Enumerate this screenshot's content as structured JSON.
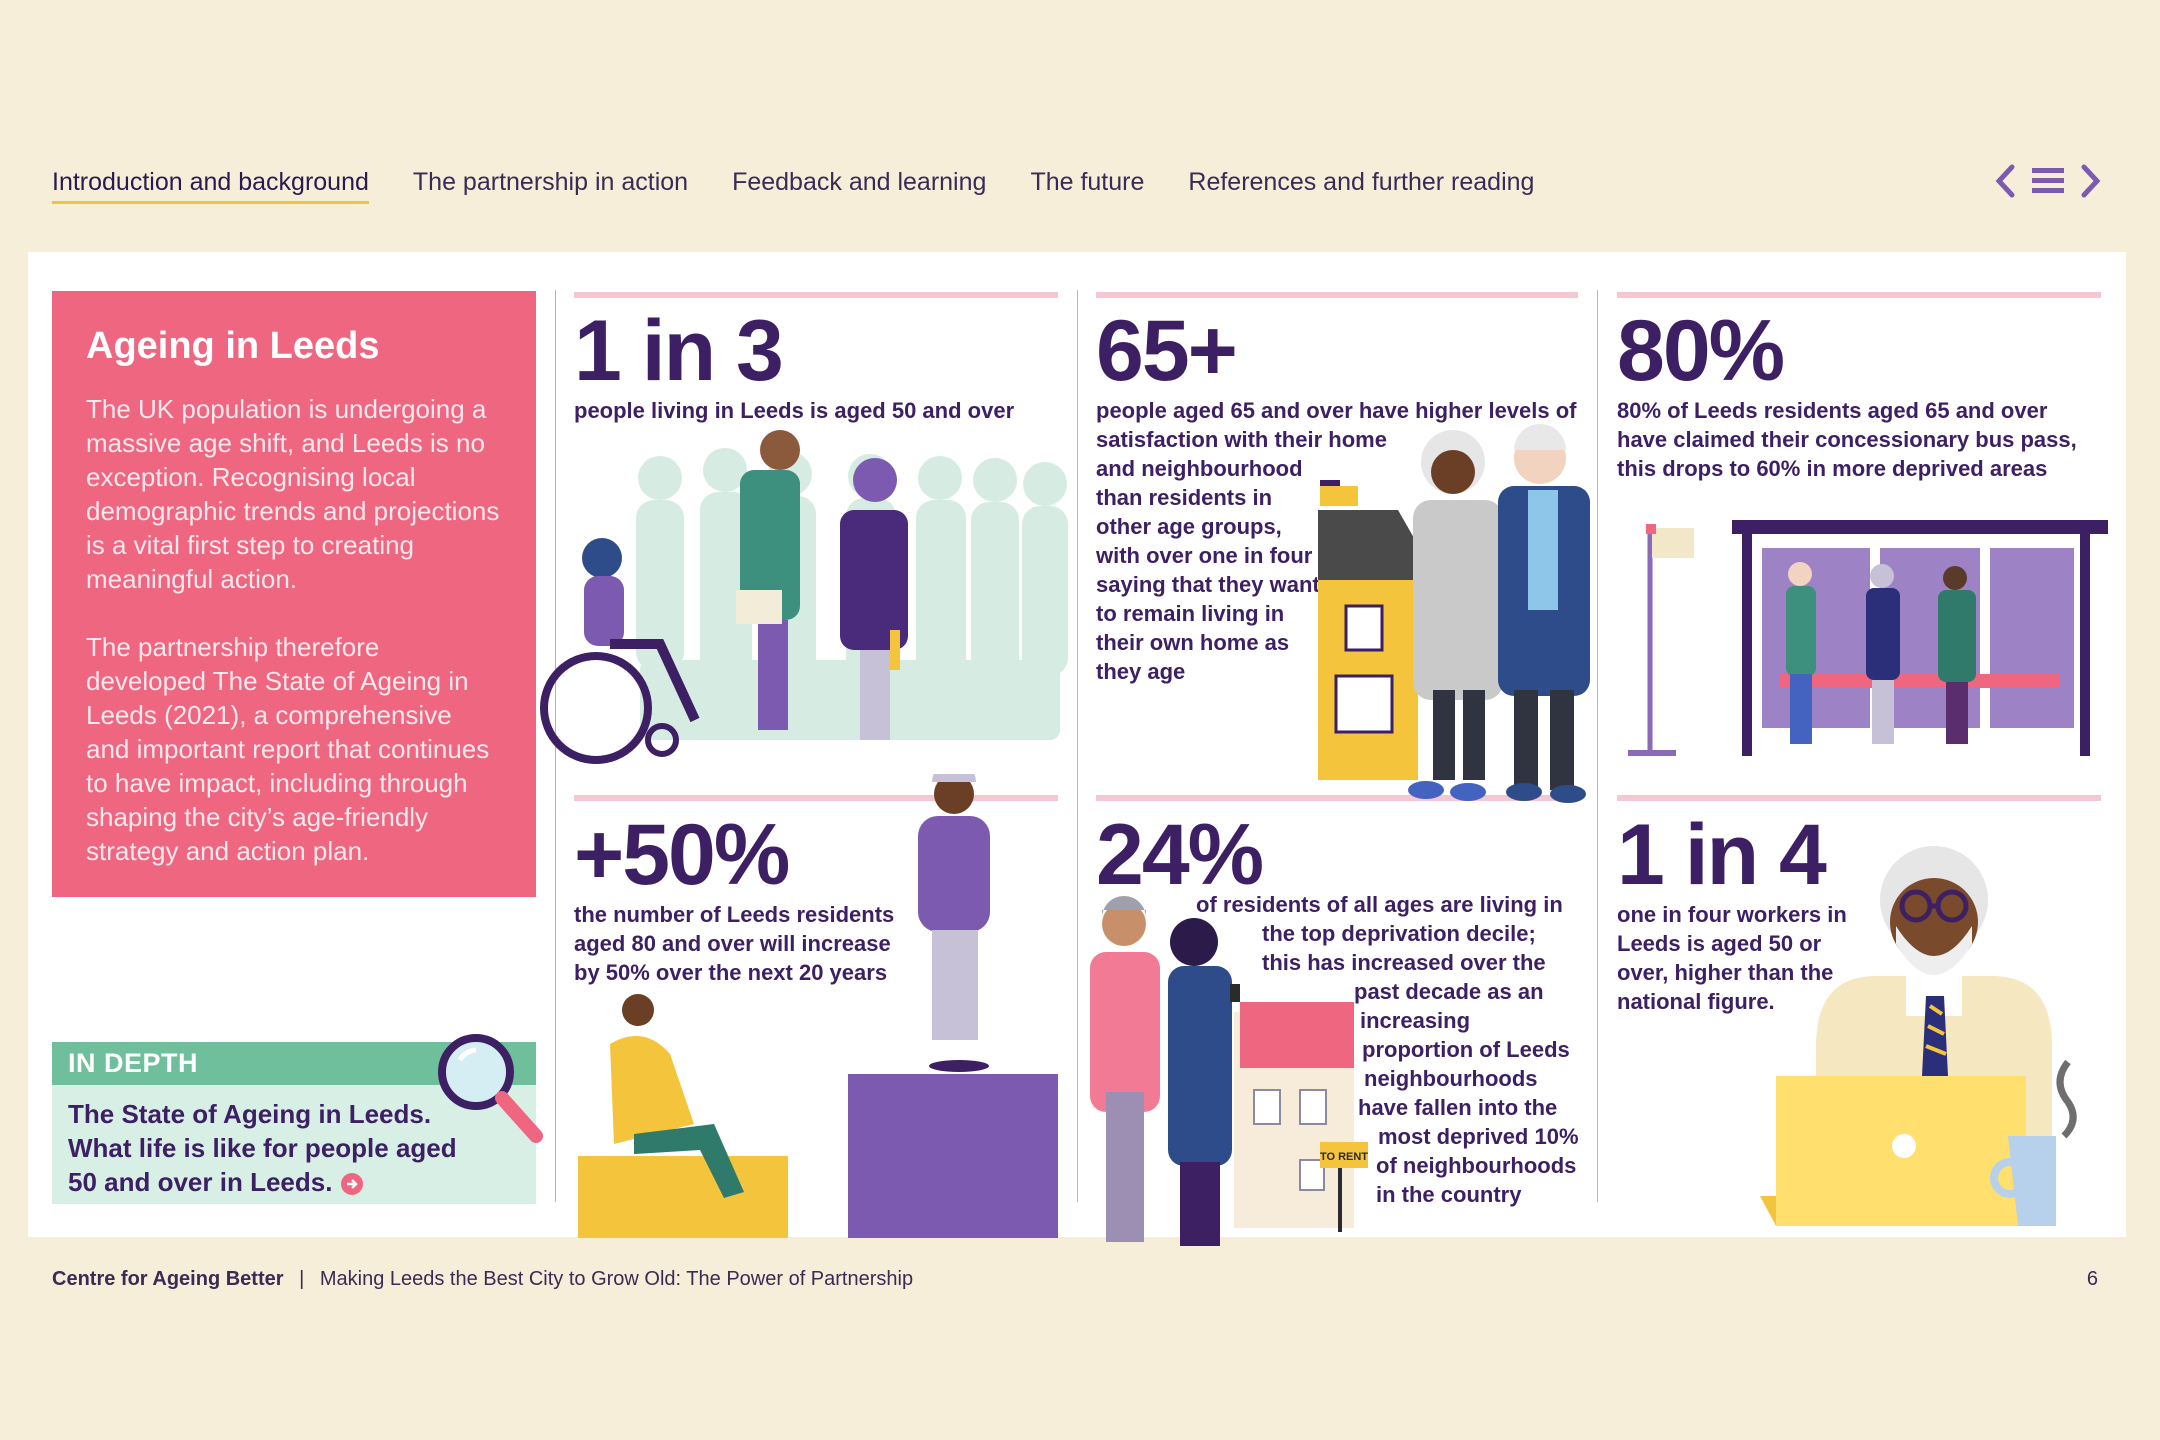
{
  "nav": {
    "items": [
      "Introduction and background",
      "The partnership in action",
      "Feedback and learning",
      "The future",
      "References and further reading"
    ]
  },
  "intro": {
    "title": "Ageing in Leeds",
    "para1": "The UK population is undergoing a massive age shift, and Leeds is no exception. Recognising local demographic trends and projections is a vital first step to creating meaningful action.",
    "para2": "The partnership therefore developed The State of Ageing in Leeds (2021), a comprehensive and important report that continues to have impact, including through shaping the city’s age-friendly strategy and action plan."
  },
  "in_depth": {
    "heading": "IN DEPTH",
    "text": "The State of Ageing in Leeds. What life is like for people aged 50 and over in Leeds."
  },
  "stats": {
    "s1": {
      "figure": "1 in 3",
      "text": "people living in Leeds is aged 50 and over"
    },
    "s2": {
      "figure": "65+",
      "line1": "people aged 65 and over have higher levels of",
      "line2": "satisfaction with their home",
      "rest": "and neighbourhood than residents in other age groups, with over one in four saying that they want to remain living in their own home as they age"
    },
    "s3": {
      "figure": "80%",
      "text": "80% of Leeds residents aged 65 and over have claimed their concessionary bus pass, this drops to 60% in more deprived areas"
    },
    "s4": {
      "figure": "+50%",
      "text": "the number of Leeds residents aged 80 and over will increase by 50% over the next 20 years"
    },
    "s5": {
      "figure": "24%",
      "lines": [
        "of residents of all ages are living in",
        "the top deprivation decile;",
        "this has increased over the",
        "past decade as an",
        "increasing",
        "proportion of Leeds",
        "neighbourhoods",
        "have fallen into the",
        "most deprived 10%",
        "of neighbourhoods",
        "in the country"
      ],
      "sign": "TO RENT"
    },
    "s6": {
      "figure": "1 in 4",
      "text": "one in four workers in Leeds is aged 50 or over, higher than the national figure."
    }
  },
  "footer": {
    "org": "Centre for Ageing Better",
    "sep": "|",
    "title": "Making Leeds the Best City to Grow Old: The Power of Partnership",
    "page": "6"
  },
  "colors": {
    "pink": "#ef6680",
    "purple": "#3d1f63",
    "yellow": "#f3c43c",
    "mint": "#d8efe6",
    "green": "#6fbf9d"
  }
}
